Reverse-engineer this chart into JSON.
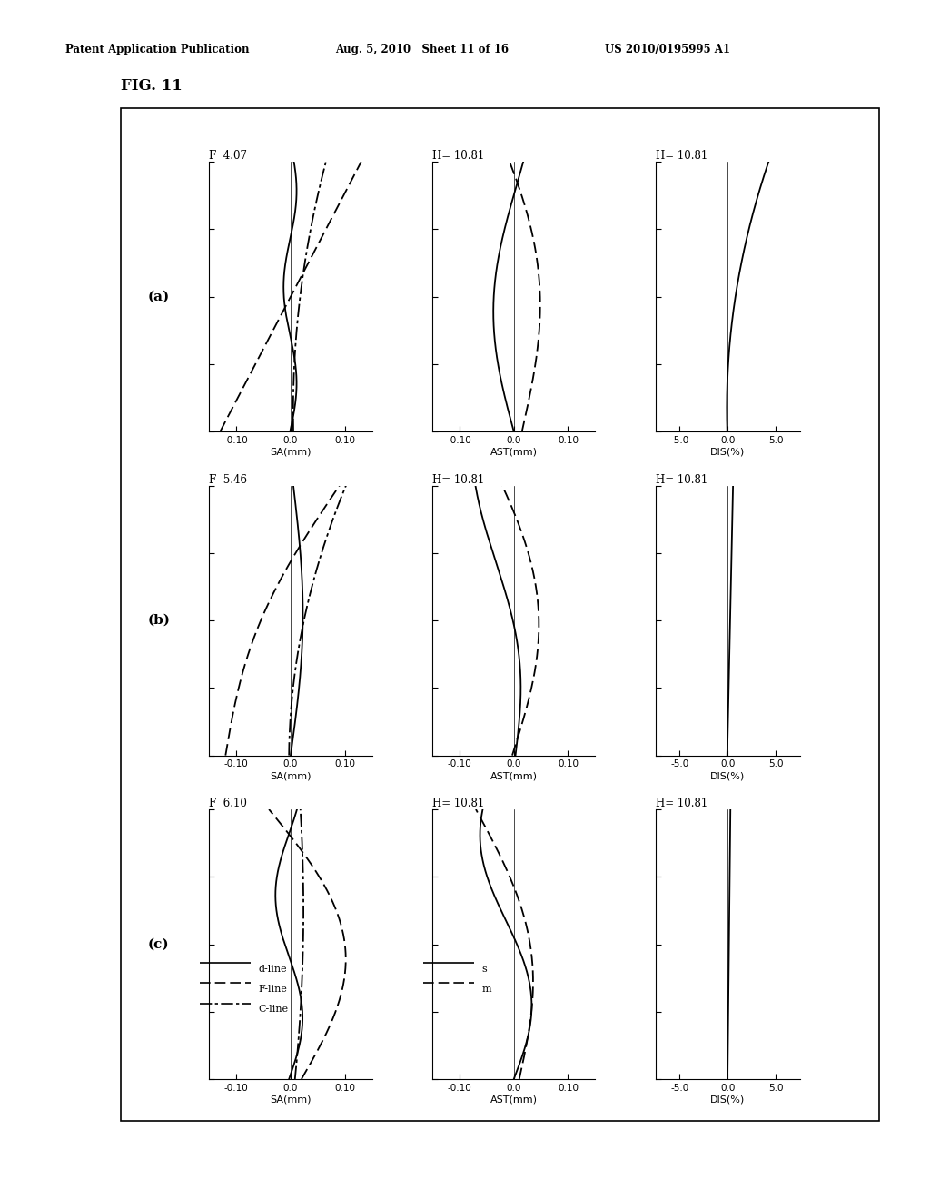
{
  "header_left": "Patent Application Publication",
  "header_mid": "Aug. 5, 2010   Sheet 11 of 16",
  "header_right": "US 2010/0195995 A1",
  "fig_label": "FIG. 11",
  "background_color": "#ffffff",
  "f_labels": [
    "F  4.07",
    "F  5.46",
    "F  6.10"
  ],
  "h_labels_ast": [
    "H= 10.81",
    "H= 10.81",
    "H= 10.81"
  ],
  "h_labels_dis": [
    "H= 10.81",
    "H= 10.81",
    "H= 10.81"
  ],
  "row_labels": [
    "(a)",
    "(b)",
    "(c)"
  ],
  "sa_xlim": [
    -0.15,
    0.15
  ],
  "sa_xticks": [
    -0.1,
    0.0,
    0.1
  ],
  "sa_xticklabels": [
    "-0.10",
    "0.0",
    "0.10"
  ],
  "sa_xlabel": "SA(mm)",
  "ast_xlim": [
    -0.15,
    0.15
  ],
  "ast_xticks": [
    -0.1,
    0.0,
    0.1
  ],
  "ast_xticklabels": [
    "-0.10",
    "0.0",
    "0.10"
  ],
  "ast_xlabel": "AST(mm)",
  "dis_xlim": [
    -7.5,
    7.5
  ],
  "dis_xticks": [
    -5.0,
    0.0,
    5.0
  ],
  "dis_xticklabels": [
    "-5.0",
    "0.0",
    "5.0"
  ],
  "dis_xlabel": "DIS(%)"
}
